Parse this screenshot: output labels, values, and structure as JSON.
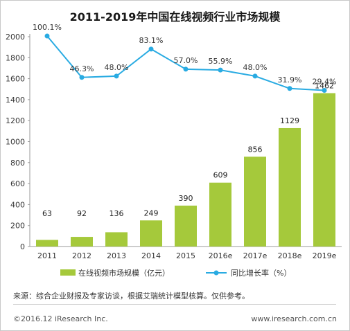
{
  "title": "2011-2019年中国在线视频行业市场规模",
  "source": "来源：综合企业财报及专家访谈，根据艾瑞统计模型核算。仅供参考。",
  "copyright": "©2016.12 iResearch Inc.",
  "site": "www.iresearch.com.cn",
  "chart_data": {
    "type": "bar+line",
    "categories": [
      "2011",
      "2012",
      "2013",
      "2014",
      "2015",
      "2016e",
      "2017e",
      "2018e",
      "2019e"
    ],
    "series": [
      {
        "name": "在线视频市场规模（亿元）",
        "type": "bar",
        "values": [
          63,
          92,
          136,
          249,
          390,
          609,
          856,
          1129,
          1462
        ],
        "labels": [
          "63",
          "92",
          "136",
          "249",
          "390",
          "609",
          "856",
          "1129",
          "1462"
        ],
        "color": "#a5c93b"
      },
      {
        "name": "同比增长率（%）",
        "type": "line",
        "values": [
          100.1,
          46.3,
          48.0,
          83.1,
          57.0,
          55.9,
          48.0,
          31.9,
          29.4
        ],
        "labels": [
          "100.1%",
          "46.3%",
          "48.0%",
          "83.1%",
          "57.0%",
          "55.9%",
          "48.0%",
          "31.9%",
          "29.4%"
        ],
        "color": "#29abe2"
      }
    ],
    "yticks": [
      "0",
      "200",
      "400",
      "600",
      "800",
      "1000",
      "1200",
      "1400",
      "1600",
      "1800",
      "2000"
    ],
    "ylim": [
      0,
      2000
    ],
    "grid": false,
    "legend_position": "bottom"
  }
}
